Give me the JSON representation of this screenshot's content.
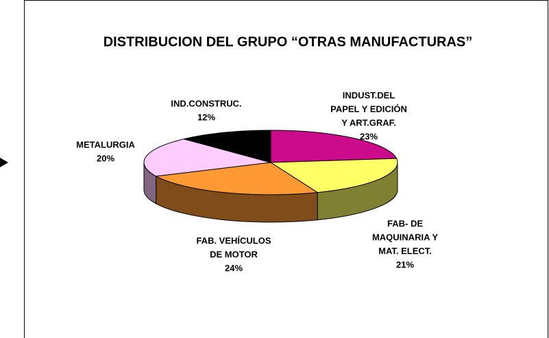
{
  "chart_data": {
    "type": "pie3d",
    "title": "DISTRIBUCION DEL GRUPO “OTRAS MANUFACTURAS”",
    "categories": [
      [
        "INDUST.DEL",
        "PAPEL Y EDICIÓN",
        "Y ART.GRAF."
      ],
      [
        "FAB- DE",
        "MAQUINARIA Y",
        "MAT. ELECT."
      ],
      [
        "FAB. VEHÍCULOS",
        "DE MOTOR"
      ],
      [
        "METALURGIA"
      ],
      [
        "IND.CONSTRUC."
      ]
    ],
    "values": [
      23,
      21,
      24,
      20,
      12
    ],
    "value_labels": [
      "23%",
      "21%",
      "24%",
      "20%",
      "12%"
    ],
    "colors": [
      "#cc0a8c",
      "#ffff66",
      "#ff9933",
      "#ffccff",
      "#000000"
    ]
  }
}
